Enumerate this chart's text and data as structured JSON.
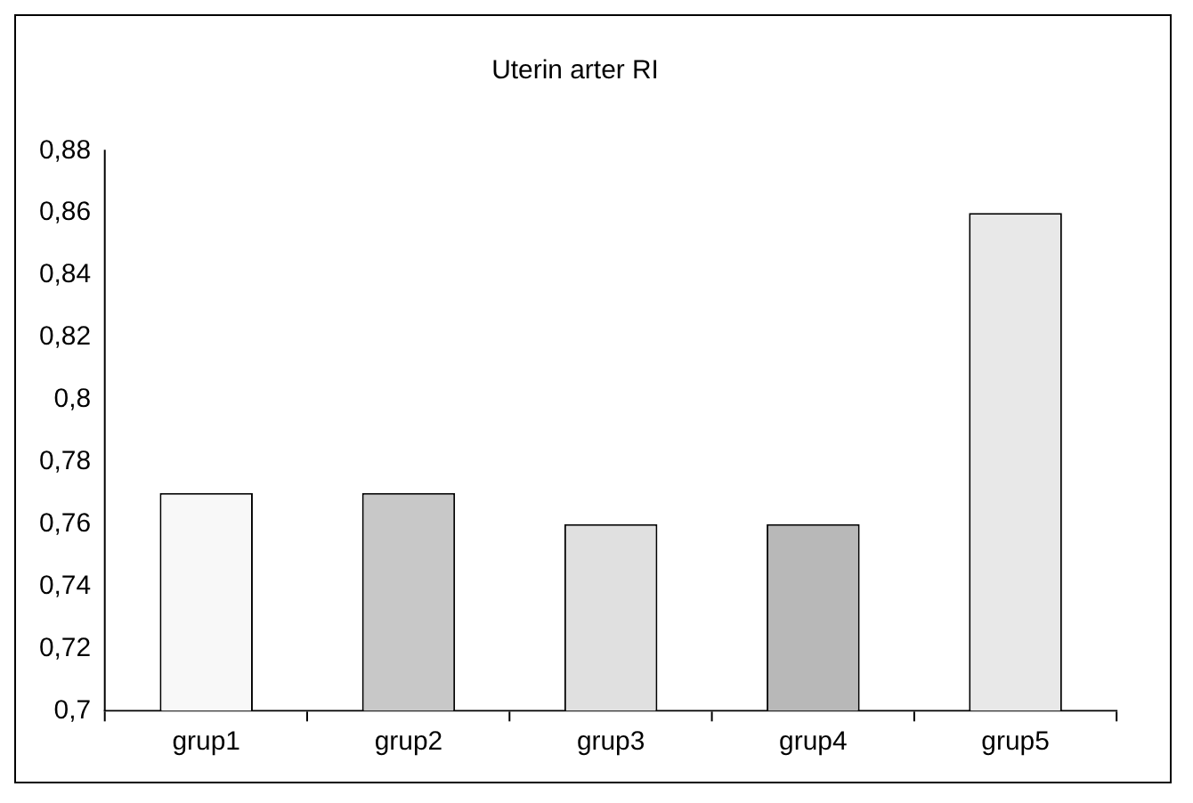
{
  "chart_data": {
    "type": "bar",
    "title": "Uterin arter RI",
    "categories": [
      "grup1",
      "grup2",
      "grup3",
      "grup4",
      "grup5"
    ],
    "values": [
      0.77,
      0.77,
      0.76,
      0.76,
      0.86
    ],
    "colors": [
      "#f8f8f8",
      "#c8c8c8",
      "#e0e0e0",
      "#b8b8b8",
      "#e8e8e8"
    ],
    "ylim": [
      0.7,
      0.88
    ],
    "yticks": [
      {
        "value": 0.7,
        "label": "0,7"
      },
      {
        "value": 0.72,
        "label": "0,72"
      },
      {
        "value": 0.74,
        "label": "0,74"
      },
      {
        "value": 0.76,
        "label": "0,76"
      },
      {
        "value": 0.78,
        "label": "0,78"
      },
      {
        "value": 0.8,
        "label": "0,8"
      },
      {
        "value": 0.82,
        "label": "0,82"
      },
      {
        "value": 0.84,
        "label": "0,84"
      },
      {
        "value": 0.86,
        "label": "0,86"
      },
      {
        "value": 0.88,
        "label": "0,88"
      }
    ],
    "grid": false,
    "legend": false
  }
}
